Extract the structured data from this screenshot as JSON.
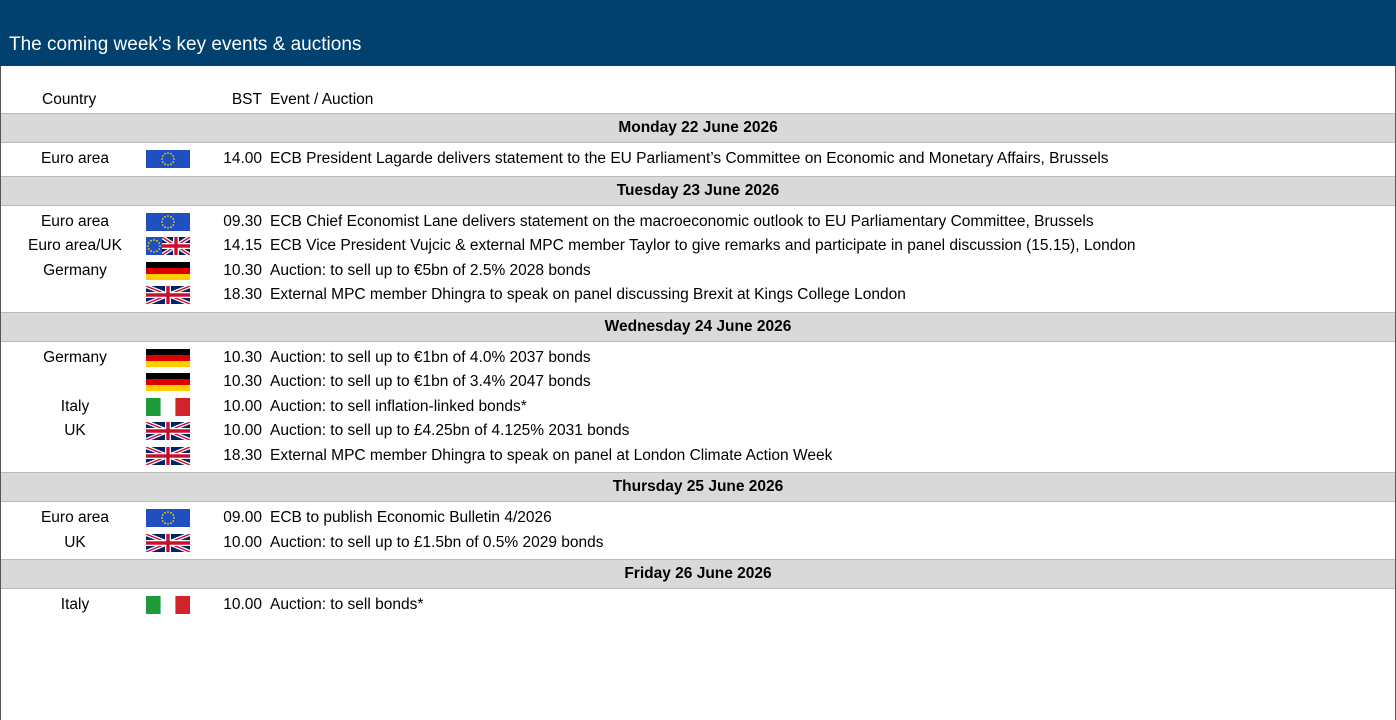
{
  "header": {
    "title": "The coming week’s key events & auctions"
  },
  "table": {
    "columns": [
      "Country",
      "BST",
      "Event / Auction"
    ],
    "days": [
      {
        "date": "Monday 22 June 2026",
        "rows": [
          {
            "country": "Euro area",
            "time": "14.00",
            "event": "ECB President Lagarde delivers statement to the EU Parliament’s Committee on Economic and Monetary Affairs, Brussels"
          }
        ]
      },
      {
        "date": "Tuesday 23 June 2026",
        "rows": [
          {
            "country": "Euro area",
            "time": "09.30",
            "event": "ECB Chief Economist Lane delivers statement on the macroeconomic outlook to EU Parliamentary Committee, Brussels"
          },
          {
            "country": "Euro area/UK",
            "time": "14.15",
            "event": "ECB Vice President Vujcic & external MPC member Taylor to give remarks and participate in panel discussion (15.15), London"
          },
          {
            "country": "Germany",
            "time": "10.30",
            "event": "Auction: to sell up to €5bn of 2.5% 2028 bonds"
          },
          {
            "country": null,
            "time": "18.30",
            "event": "External MPC member Dhingra to speak on panel discussing Brexit at Kings College London"
          }
        ]
      },
      {
        "date": "Wednesday 24 June 2026",
        "rows": [
          {
            "country": "Germany",
            "time": "10.30",
            "event": "Auction: to sell up to €1bn of 4.0% 2037 bonds"
          },
          {
            "country": null,
            "time": "10.30",
            "event": "Auction: to sell up to €1bn of 3.4% 2047 bonds"
          },
          {
            "country": "Italy",
            "time": "10.00",
            "event": "Auction: to sell inflation-linked bonds*"
          },
          {
            "country": "UK",
            "time": "10.00",
            "event": "Auction: to sell up to £4.25bn of 4.125% 2031 bonds"
          },
          {
            "country": null,
            "time": "18.30",
            "event": "External MPC member Dhingra to speak on panel at London Climate Action Week"
          }
        ]
      },
      {
        "date": "Thursday 25 June 2026",
        "rows": [
          {
            "country": "Euro area",
            "time": "09.00",
            "event": "ECB to publish Economic Bulletin 4/2026"
          },
          {
            "country": "UK",
            "time": "10.00",
            "event": "Auction: to sell up to £1.5bn of 0.5% 2029 bonds"
          }
        ]
      },
      {
        "date": "Friday 26 June 2026",
        "rows": [
          {
            "country": "Italy",
            "time": "10.00",
            "event": "Auction: to sell bonds*"
          }
        ]
      }
    ]
  }
}
